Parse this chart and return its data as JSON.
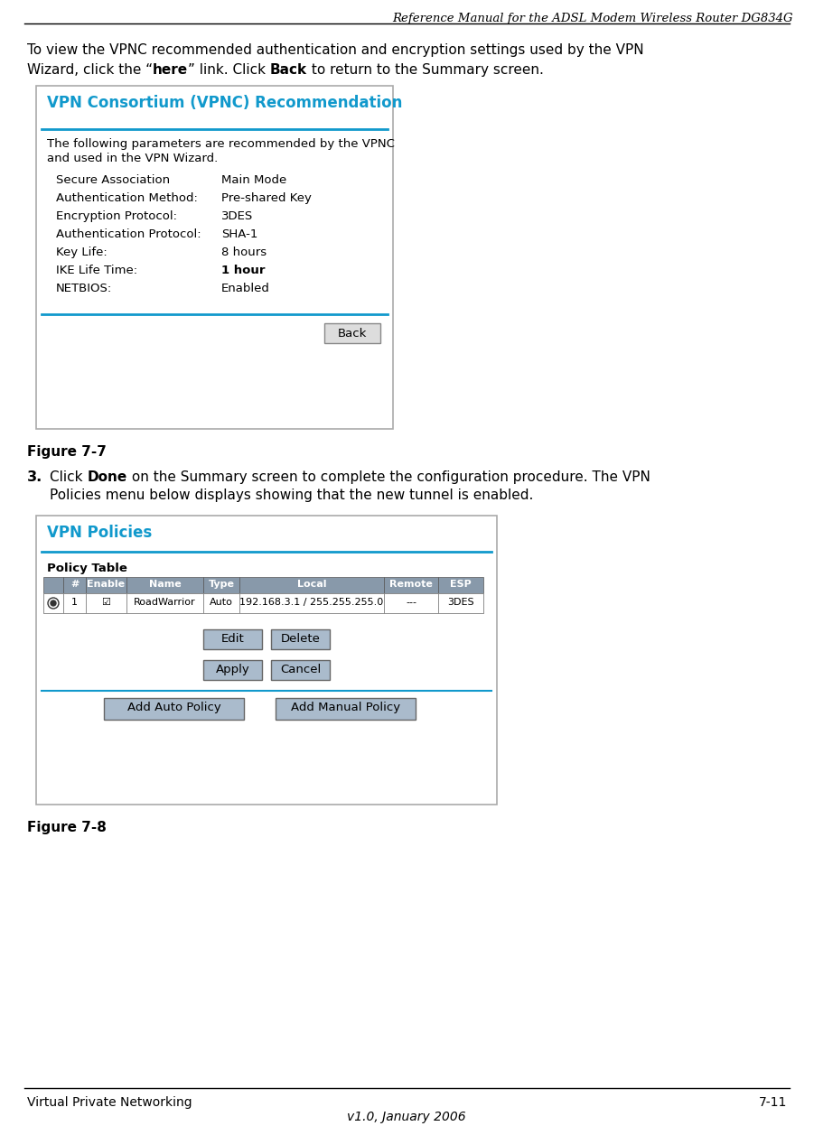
{
  "header_title": "Reference Manual for the ADSL Modem Wireless Router DG834G",
  "footer_left": "Virtual Private Networking",
  "footer_right": "7-11",
  "footer_center": "v1.0, January 2006",
  "fig7_label": "Figure 7-7",
  "fig8_label": "Figure 7-8",
  "vpnc_title": "VPN Consortium (VPNC) Recommendation",
  "vpnc_blue": "#1199CC",
  "vpnc_desc_line1": "The following parameters are recommended by the VPNC",
  "vpnc_desc_line2": "and used in the VPN Wizard.",
  "vpnc_rows": [
    [
      "Secure Association",
      "Main Mode",
      false
    ],
    [
      "Authentication Method:",
      "Pre-shared Key",
      false
    ],
    [
      "Encryption Protocol:",
      "3DES",
      false
    ],
    [
      "Authentication Protocol:",
      "SHA-1",
      false
    ],
    [
      "Key Life:",
      "8 hours",
      false
    ],
    [
      "IKE Life Time:",
      "1 hour",
      true
    ],
    [
      "NETBIOS:",
      "Enabled",
      false
    ]
  ],
  "step3_text_line2": "Policies menu below displays showing that the new tunnel is enabled.",
  "vpnp_title": "VPN Policies",
  "vpnp_blue": "#1199CC",
  "vpnp_section": "Policy Table",
  "vpnp_headers": [
    "",
    "#",
    "Enable",
    "Name",
    "Type",
    "Local",
    "Remote",
    "ESP"
  ],
  "vpnp_row_radio": true,
  "vpnp_row": [
    "1",
    "☑",
    "RoadWarrior",
    "Auto",
    "192.168.3.1 / 255.255.255.0",
    "---",
    "3DES"
  ],
  "bg_color": "#FFFFFF",
  "box_border_color": "#AAAAAA",
  "box_bg": "#FFFFFF",
  "table_header_bg": "#8899AA",
  "table_header_fg": "#FFFFFF",
  "button_bg": "#AABBCC",
  "button_border": "#666666"
}
